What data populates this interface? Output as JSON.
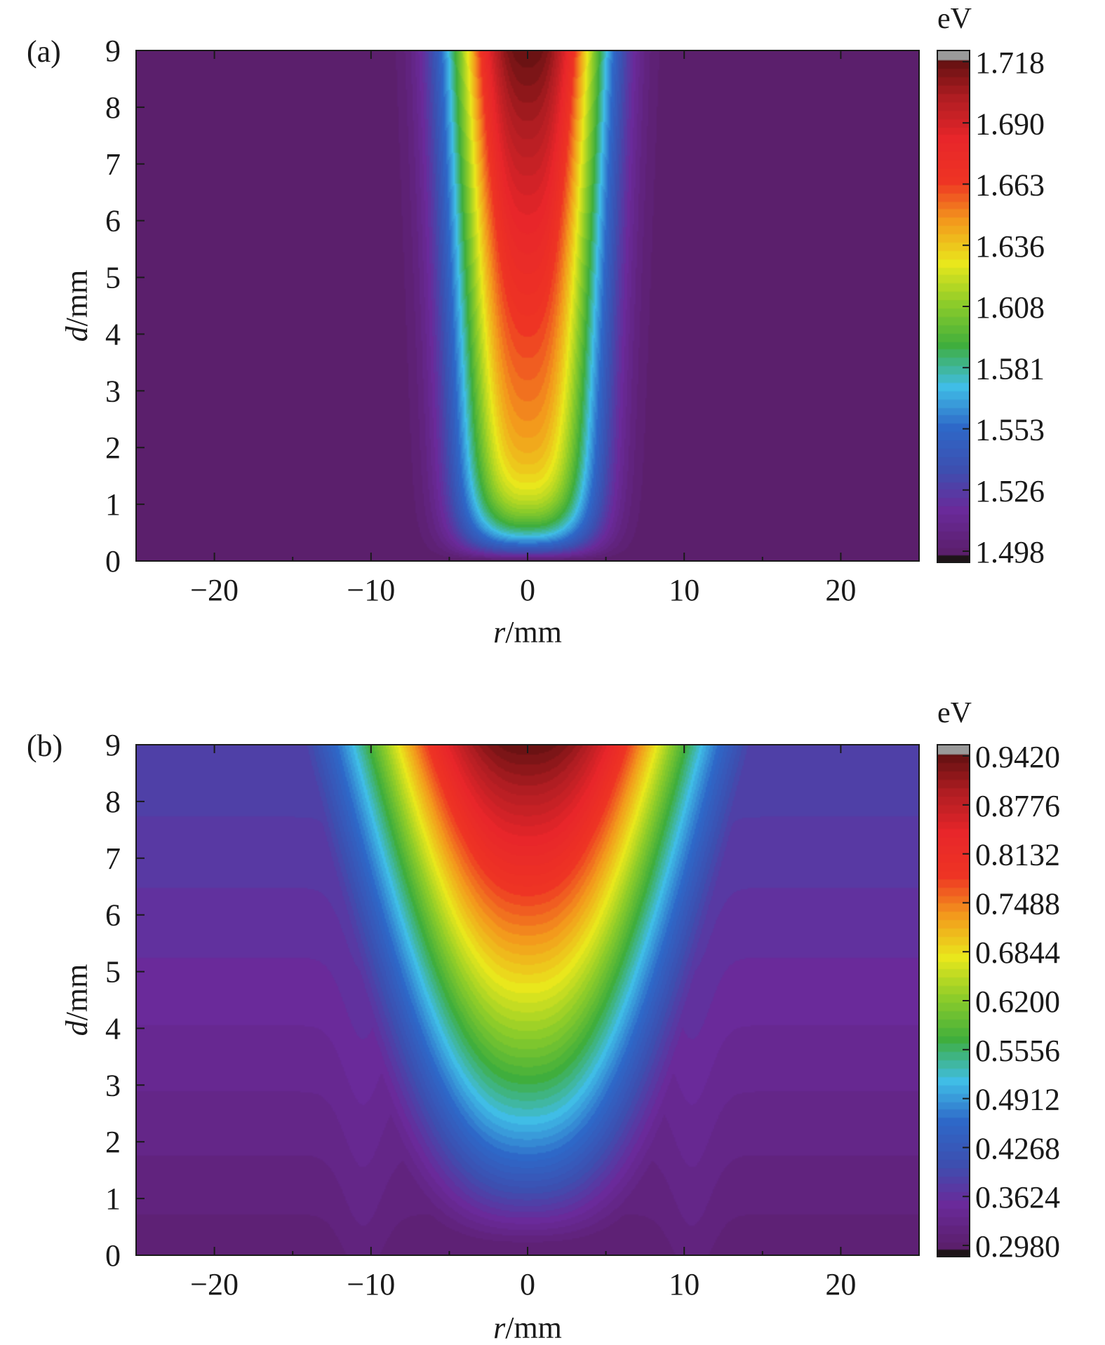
{
  "chart_data": [
    {
      "type": "heatmap",
      "panel_label": "(a)",
      "xlabel_var": "r",
      "xlabel_unit": "/mm",
      "ylabel_var": "d",
      "ylabel_unit": "/mm",
      "xlim": [
        -25,
        25
      ],
      "ylim": [
        0,
        9
      ],
      "x_ticks": [
        "−20",
        "−10",
        "0",
        "10",
        "20"
      ],
      "x_tick_values": [
        -20,
        -10,
        0,
        10,
        20
      ],
      "y_ticks": [
        "0",
        "1",
        "2",
        "3",
        "4",
        "5",
        "6",
        "7",
        "8",
        "9"
      ],
      "colorbar_unit": "eV",
      "colorbar_range": [
        1.498,
        1.718
      ],
      "colorbar_ticks": [
        "1.718",
        "1.690",
        "1.663",
        "1.636",
        "1.608",
        "1.581",
        "1.553",
        "1.526",
        "1.498"
      ],
      "field": {
        "background": 1.498,
        "peak": 1.718,
        "description_values": {
          "center_top_value": 1.718,
          "center_bottom_value": 1.56,
          "core_halfwidth_mm": [
            4.4,
            4.9
          ],
          "edge_width_mm": [
            1.2,
            1.5
          ]
        }
      },
      "grid": false
    },
    {
      "type": "heatmap",
      "panel_label": "(b)",
      "xlabel_var": "r",
      "xlabel_unit": "/mm",
      "ylabel_var": "d",
      "ylabel_unit": "/mm",
      "xlim": [
        -25,
        25
      ],
      "ylim": [
        0,
        9
      ],
      "x_ticks": [
        "−20",
        "−10",
        "0",
        "10",
        "20"
      ],
      "x_tick_values": [
        -20,
        -10,
        0,
        10,
        20
      ],
      "y_ticks": [
        "0",
        "1",
        "2",
        "3",
        "4",
        "5",
        "6",
        "7",
        "8",
        "9"
      ],
      "colorbar_unit": "eV",
      "colorbar_range": [
        0.298,
        0.942
      ],
      "colorbar_ticks": [
        "0.9420",
        "0.8776",
        "0.8132",
        "0.7488",
        "0.6844",
        "0.6200",
        "0.5556",
        "0.4912",
        "0.4268",
        "0.3624",
        "0.2980"
      ],
      "field": {
        "background_bottom": 0.298,
        "background_top": 0.39,
        "peak": 0.942,
        "description_values": {
          "center_top_value": 0.942,
          "center_bottom_value": 0.37,
          "core_halfwidth_mm": [
            5.0,
            10.5
          ],
          "edge_width_mm": [
            4.5,
            3.0
          ]
        }
      },
      "grid": false
    }
  ],
  "colormap": [
    "#1e1418",
    "#5b1f6c",
    "#6a2a9a",
    "#3d4fb0",
    "#2e68c8",
    "#40bde6",
    "#3fae3d",
    "#8ccc2a",
    "#e9e71c",
    "#f39a1c",
    "#ee3424",
    "#e8262a",
    "#b01d22",
    "#5a0f0f",
    "#9a9a9a"
  ]
}
